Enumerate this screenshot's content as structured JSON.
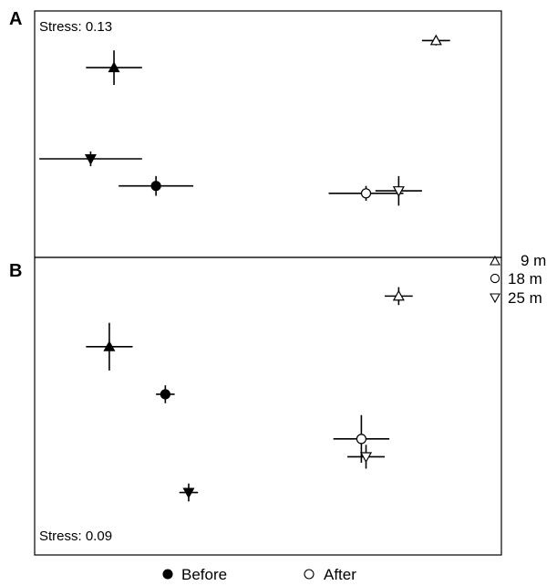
{
  "chart_data": [
    {
      "type": "scatter",
      "panel": "A",
      "stress": "Stress: 0.13",
      "points": [
        {
          "symbol": "up-triangle",
          "filled": true,
          "x": 0.17,
          "y": 0.77,
          "xerr": 0.06,
          "yerr": 0.07
        },
        {
          "symbol": "down-triangle",
          "filled": true,
          "x": 0.12,
          "y": 0.4,
          "xerr": 0.11,
          "yerr": 0.03
        },
        {
          "symbol": "circle",
          "filled": true,
          "x": 0.26,
          "y": 0.29,
          "xerr": 0.08,
          "yerr": 0.04
        },
        {
          "symbol": "up-triangle",
          "filled": false,
          "x": 0.86,
          "y": 0.88,
          "xerr": 0.03,
          "yerr": 0.02
        },
        {
          "symbol": "circle",
          "filled": false,
          "x": 0.71,
          "y": 0.26,
          "xerr": 0.08,
          "yerr": 0.03
        },
        {
          "symbol": "down-triangle",
          "filled": false,
          "x": 0.78,
          "y": 0.27,
          "xerr": 0.05,
          "yerr": 0.06
        }
      ]
    },
    {
      "type": "scatter",
      "panel": "B",
      "stress": "Stress: 0.09",
      "points": [
        {
          "symbol": "up-triangle",
          "filled": true,
          "x": 0.16,
          "y": 0.7,
          "xerr": 0.05,
          "yerr": 0.08
        },
        {
          "symbol": "circle",
          "filled": true,
          "x": 0.28,
          "y": 0.54,
          "xerr": 0.02,
          "yerr": 0.03
        },
        {
          "symbol": "down-triangle",
          "filled": true,
          "x": 0.33,
          "y": 0.21,
          "xerr": 0.02,
          "yerr": 0.03
        },
        {
          "symbol": "up-triangle",
          "filled": false,
          "x": 0.78,
          "y": 0.87,
          "xerr": 0.03,
          "yerr": 0.03
        },
        {
          "symbol": "circle",
          "filled": false,
          "x": 0.7,
          "y": 0.39,
          "xerr": 0.06,
          "yerr": 0.08
        },
        {
          "symbol": "down-triangle",
          "filled": false,
          "x": 0.71,
          "y": 0.33,
          "xerr": 0.04,
          "yerr": 0.04
        }
      ]
    }
  ],
  "depth_legend": [
    {
      "symbol": "up-triangle",
      "label": "9 m"
    },
    {
      "symbol": "circle",
      "label": "18 m"
    },
    {
      "symbol": "down-triangle",
      "label": "25 m"
    }
  ],
  "fill_legend": [
    {
      "filled": true,
      "label": "Before"
    },
    {
      "filled": false,
      "label": "After"
    }
  ],
  "colors": {
    "ink": "#000000",
    "background": "#ffffff"
  }
}
